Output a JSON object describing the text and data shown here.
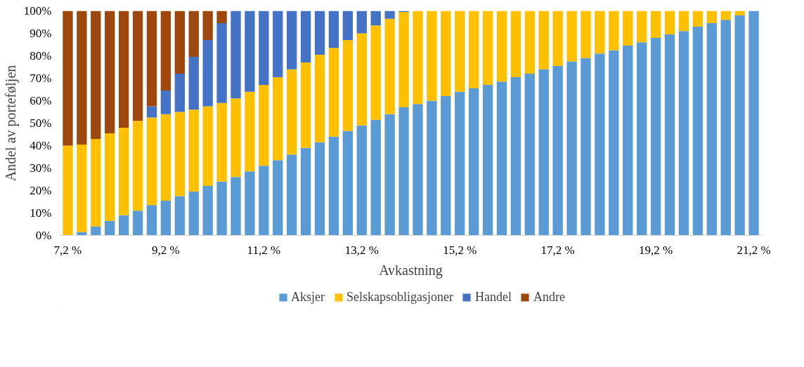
{
  "chart_data": {
    "type": "bar",
    "stacked": true,
    "xlabel": "Avkastning",
    "ylabel": "Andel av porteføljen",
    "categories": [
      "7,2 %",
      null,
      null,
      null,
      null,
      null,
      null,
      "9,2 %",
      null,
      null,
      null,
      null,
      null,
      null,
      "11,2 %",
      null,
      null,
      null,
      null,
      null,
      null,
      "13,2 %",
      null,
      null,
      null,
      null,
      null,
      null,
      "15,2 %",
      null,
      null,
      null,
      null,
      null,
      null,
      "17,2 %",
      null,
      null,
      null,
      null,
      null,
      null,
      "19,2 %",
      null,
      null,
      null,
      null,
      null,
      null,
      "21,2 %"
    ],
    "ylim": [
      0,
      100
    ],
    "yticks": [
      {
        "value": 0,
        "label": "0%"
      },
      {
        "value": 10,
        "label": "10%"
      },
      {
        "value": 20,
        "label": "20%"
      },
      {
        "value": 30,
        "label": "30%"
      },
      {
        "value": 40,
        "label": "40%"
      },
      {
        "value": 50,
        "label": "50%"
      },
      {
        "value": 60,
        "label": "60%"
      },
      {
        "value": 70,
        "label": "70%"
      },
      {
        "value": 80,
        "label": "80%"
      },
      {
        "value": 90,
        "label": "90%"
      },
      {
        "value": 100,
        "label": "100%"
      }
    ],
    "series": [
      {
        "name": "Aksjer",
        "color": "#5b9bd5",
        "values": [
          0,
          1.5,
          4,
          6.5,
          9,
          11,
          13.5,
          15.5,
          17.5,
          19.5,
          22,
          24,
          26,
          28.5,
          31,
          33.5,
          36,
          39,
          41.5,
          44,
          46.5,
          49,
          51.5,
          54,
          57,
          58.5,
          60,
          62,
          64,
          65.5,
          67,
          68.5,
          70.5,
          72,
          74,
          75.5,
          77.5,
          79,
          81,
          82.5,
          84.5,
          86,
          88,
          89.5,
          91,
          93,
          94.5,
          96,
          98,
          100
        ]
      },
      {
        "name": "Selskapsobligasjoner",
        "color": "#ffc000",
        "values": [
          40,
          39,
          39,
          39,
          39,
          40,
          39,
          38.5,
          37.5,
          36.5,
          35.5,
          35,
          35,
          35.5,
          36,
          37,
          38,
          38,
          39,
          39.5,
          40.5,
          41,
          42,
          42.5,
          42.5,
          41.5,
          40,
          38,
          36,
          34.5,
          33,
          31.5,
          29.5,
          28,
          26,
          24.5,
          22.5,
          21,
          19,
          17.5,
          15.5,
          14,
          12,
          10.5,
          9,
          7,
          5.5,
          4,
          2,
          0
        ]
      },
      {
        "name": "Handel",
        "color": "#4472c4",
        "values": [
          0,
          0,
          0,
          0,
          0,
          0,
          5,
          10.5,
          17,
          23.5,
          29.5,
          35.5,
          39,
          36,
          33,
          29.5,
          26,
          23,
          19.5,
          16.5,
          13,
          10,
          6.5,
          3.5,
          0.5,
          0,
          0,
          0,
          0,
          0,
          0,
          0,
          0,
          0,
          0,
          0,
          0,
          0,
          0,
          0,
          0,
          0,
          0,
          0,
          0,
          0,
          0,
          0,
          0,
          0
        ]
      },
      {
        "name": "Andre",
        "color": "#9e480e",
        "values": [
          60,
          59.5,
          57,
          54.5,
          52,
          49,
          42.5,
          35.5,
          28,
          20.5,
          13,
          5.5,
          0,
          0,
          0,
          0,
          0,
          0,
          0,
          0,
          0,
          0,
          0,
          0,
          0,
          0,
          0,
          0,
          0,
          0,
          0,
          0,
          0,
          0,
          0,
          0,
          0,
          0,
          0,
          0,
          0,
          0,
          0,
          0,
          0,
          0,
          0,
          0,
          0,
          0
        ]
      }
    ],
    "legend": "bottom",
    "grid": false
  }
}
